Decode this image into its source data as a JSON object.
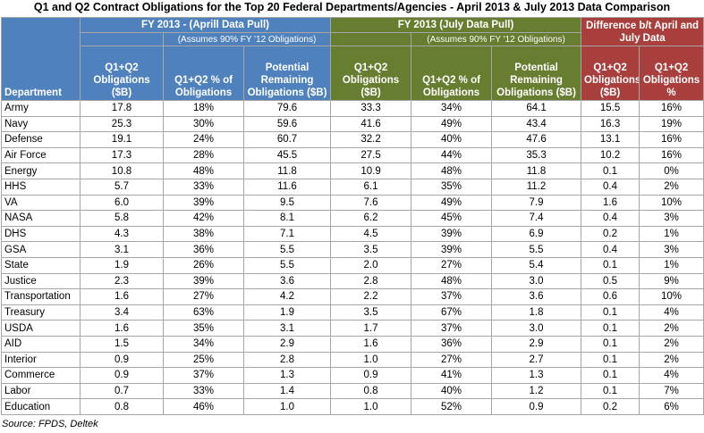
{
  "header": {
    "title": "Q1 and Q2 Contract Obligations for the Top 20 Federal Departments/Agencies - April 2013 & July 2013 Data Comparison"
  },
  "table": {
    "groups": [
      {
        "label": "FY 2013 - (Aprill Data Pull)",
        "note": "(Assumes 90% FY '12 Obligations)"
      },
      {
        "label": "FY 2013 (July Data Pull)",
        "note": "(Assumes 90% FY '12 Obligations)"
      },
      {
        "label": "Difference b/t April and July Data"
      }
    ],
    "columns": [
      "Department",
      "Q1+Q2 Obligations ($B)",
      "Q1+Q2 % of Obligations",
      "Potential Remaining Obligations ($B)",
      "Q1+Q2 Obligations ($B)",
      "Q1+Q2 % of Obligations",
      "Potential Remaining Obligations ($B)",
      "Q1+Q2 Obligations ($B)",
      "Q1+Q2 Obligations %"
    ],
    "rows": [
      [
        "Army",
        "17.8",
        "18%",
        "79.6",
        "33.3",
        "34%",
        "64.1",
        "15.5",
        "16%"
      ],
      [
        "Navy",
        "25.3",
        "30%",
        "59.6",
        "41.6",
        "49%",
        "43.4",
        "16.3",
        "19%"
      ],
      [
        "Defense",
        "19.1",
        "24%",
        "60.7",
        "32.2",
        "40%",
        "47.6",
        "13.1",
        "16%"
      ],
      [
        "Air Force",
        "17.3",
        "28%",
        "45.5",
        "27.5",
        "44%",
        "35.3",
        "10.2",
        "16%"
      ],
      [
        "Energy",
        "10.8",
        "48%",
        "11.8",
        "10.9",
        "48%",
        "11.8",
        "0.1",
        "0%"
      ],
      [
        "HHS",
        "5.7",
        "33%",
        "11.6",
        "6.1",
        "35%",
        "11.2",
        "0.4",
        "2%"
      ],
      [
        "VA",
        "6.0",
        "39%",
        "9.5",
        "7.6",
        "49%",
        "7.9",
        "1.6",
        "10%"
      ],
      [
        "NASA",
        "5.8",
        "42%",
        "8.1",
        "6.2",
        "45%",
        "7.4",
        "0.4",
        "3%"
      ],
      [
        "DHS",
        "4.3",
        "38%",
        "7.1",
        "4.5",
        "39%",
        "6.9",
        "0.2",
        "1%"
      ],
      [
        "GSA",
        "3.1",
        "36%",
        "5.5",
        "3.5",
        "39%",
        "5.5",
        "0.4",
        "3%"
      ],
      [
        "State",
        "1.9",
        "26%",
        "5.5",
        "2.0",
        "27%",
        "5.4",
        "0.1",
        "1%"
      ],
      [
        "Justice",
        "2.3",
        "39%",
        "3.6",
        "2.8",
        "48%",
        "3.0",
        "0.5",
        "9%"
      ],
      [
        "Transportation",
        "1.6",
        "27%",
        "4.2",
        "2.2",
        "37%",
        "3.6",
        "0.6",
        "10%"
      ],
      [
        "Treasury",
        "3.4",
        "63%",
        "1.9",
        "3.5",
        "67%",
        "1.8",
        "0.1",
        "4%"
      ],
      [
        "USDA",
        "1.6",
        "35%",
        "3.1",
        "1.7",
        "37%",
        "3.0",
        "0.1",
        "2%"
      ],
      [
        "AID",
        "1.5",
        "34%",
        "2.9",
        "1.6",
        "36%",
        "2.9",
        "0.1",
        "2%"
      ],
      [
        "Interior",
        "0.9",
        "25%",
        "2.8",
        "1.0",
        "27%",
        "2.7",
        "0.1",
        "2%"
      ],
      [
        "Commerce",
        "0.9",
        "37%",
        "1.3",
        "0.9",
        "41%",
        "1.3",
        "0.1",
        "4%"
      ],
      [
        "Labor",
        "0.7",
        "33%",
        "1.4",
        "0.8",
        "40%",
        "1.2",
        "0.1",
        "7%"
      ],
      [
        "Education",
        "0.8",
        "46%",
        "1.0",
        "1.0",
        "52%",
        "0.9",
        "0.2",
        "6%"
      ]
    ]
  },
  "source": "Source: FPDS, Deltek"
}
